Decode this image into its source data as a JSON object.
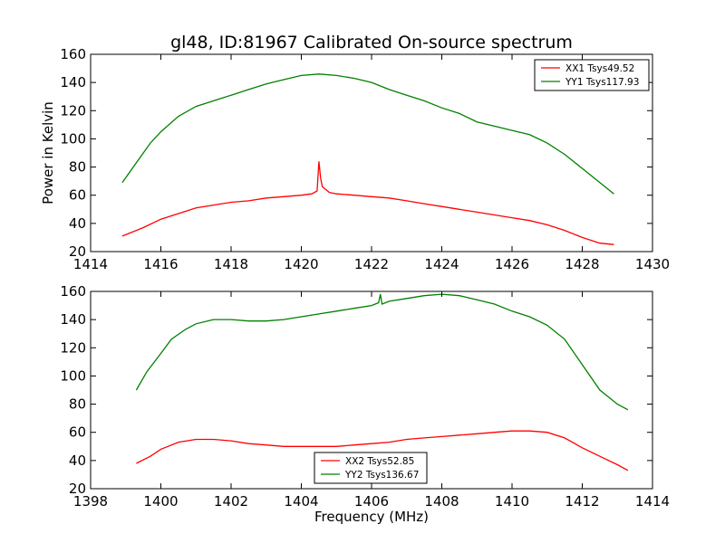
{
  "chart_data": [
    {
      "type": "line",
      "title": "gl48, ID:81967 Calibrated On-source spectrum",
      "xlabel": "",
      "ylabel": "Power in Kelvin",
      "xlim": [
        1414,
        1430
      ],
      "ylim": [
        20,
        160
      ],
      "xticks": [
        "1414",
        "1416",
        "1418",
        "1420",
        "1422",
        "1424",
        "1426",
        "1428",
        "1430"
      ],
      "yticks": [
        "20",
        "40",
        "60",
        "80",
        "100",
        "120",
        "140",
        "160"
      ],
      "legend_position": "top-right",
      "grid": false,
      "series": [
        {
          "name": "XX1 Tsys49.52",
          "color": "#ff0000",
          "x": [
            1414.9,
            1415.5,
            1416.0,
            1416.5,
            1417.0,
            1417.5,
            1418.0,
            1418.5,
            1419.0,
            1419.5,
            1420.0,
            1420.3,
            1420.45,
            1420.5,
            1420.55,
            1420.6,
            1420.7,
            1420.8,
            1421.0,
            1421.5,
            1422.0,
            1422.5,
            1423.0,
            1423.5,
            1424.0,
            1424.5,
            1425.0,
            1425.5,
            1426.0,
            1426.5,
            1427.0,
            1427.5,
            1428.0,
            1428.5,
            1428.9
          ],
          "y": [
            31,
            37,
            43,
            47,
            51,
            53,
            55,
            56,
            58,
            59,
            60,
            61,
            63,
            84,
            72,
            66,
            64,
            62,
            61,
            60,
            59,
            58,
            56,
            54,
            52,
            50,
            48,
            46,
            44,
            42,
            39,
            35,
            30,
            26,
            25
          ]
        },
        {
          "name": "YY1 Tsys117.93",
          "color": "#008000",
          "x": [
            1414.9,
            1415.3,
            1415.7,
            1416.0,
            1416.5,
            1417.0,
            1417.5,
            1418.0,
            1418.5,
            1419.0,
            1419.5,
            1420.0,
            1420.5,
            1421.0,
            1421.5,
            1422.0,
            1422.5,
            1423.0,
            1423.5,
            1424.0,
            1424.5,
            1425.0,
            1425.5,
            1426.0,
            1426.5,
            1427.0,
            1427.5,
            1428.0,
            1428.5,
            1428.9
          ],
          "y": [
            69,
            83,
            97,
            105,
            116,
            123,
            127,
            131,
            135,
            139,
            142,
            145,
            146,
            145,
            143,
            140,
            135,
            131,
            127,
            122,
            118,
            112,
            109,
            106,
            103,
            97,
            89,
            79,
            69,
            61
          ]
        }
      ]
    },
    {
      "type": "line",
      "title": "",
      "xlabel": "Frequency (MHz)",
      "ylabel": "",
      "xlim": [
        1398,
        1414
      ],
      "ylim": [
        20,
        160
      ],
      "xticks": [
        "1398",
        "1400",
        "1402",
        "1404",
        "1406",
        "1408",
        "1410",
        "1412",
        "1414"
      ],
      "yticks": [
        "20",
        "40",
        "60",
        "80",
        "100",
        "120",
        "140",
        "160"
      ],
      "legend_position": "bottom-center",
      "grid": false,
      "series": [
        {
          "name": "XX2 Tsys52.85",
          "color": "#ff0000",
          "x": [
            1399.3,
            1399.7,
            1400.0,
            1400.5,
            1401.0,
            1401.5,
            1402.0,
            1402.5,
            1403.0,
            1403.5,
            1404.0,
            1404.5,
            1405.0,
            1405.5,
            1406.0,
            1406.5,
            1407.0,
            1407.5,
            1408.0,
            1408.5,
            1409.0,
            1409.5,
            1410.0,
            1410.5,
            1411.0,
            1411.5,
            1412.0,
            1412.5,
            1413.0,
            1413.3
          ],
          "y": [
            38,
            43,
            48,
            53,
            55,
            55,
            54,
            52,
            51,
            50,
            50,
            50,
            50,
            51,
            52,
            53,
            55,
            56,
            57,
            58,
            59,
            60,
            61,
            61,
            60,
            56,
            49,
            43,
            37,
            33
          ]
        },
        {
          "name": "YY2 Tsys136.67",
          "color": "#008000",
          "x": [
            1399.3,
            1399.6,
            1400.0,
            1400.3,
            1400.7,
            1401.0,
            1401.5,
            1402.0,
            1402.5,
            1403.0,
            1403.5,
            1404.0,
            1404.5,
            1405.0,
            1405.5,
            1406.0,
            1406.2,
            1406.25,
            1406.3,
            1406.5,
            1407.0,
            1407.5,
            1408.0,
            1408.5,
            1409.0,
            1409.5,
            1410.0,
            1410.5,
            1411.0,
            1411.5,
            1412.0,
            1412.5,
            1413.0,
            1413.3
          ],
          "y": [
            90,
            103,
            116,
            126,
            133,
            137,
            140,
            140,
            139,
            139,
            140,
            142,
            144,
            146,
            148,
            150,
            152,
            158,
            151,
            153,
            155,
            157,
            158,
            157,
            154,
            151,
            146,
            142,
            136,
            126,
            108,
            90,
            80,
            76
          ]
        }
      ]
    }
  ]
}
